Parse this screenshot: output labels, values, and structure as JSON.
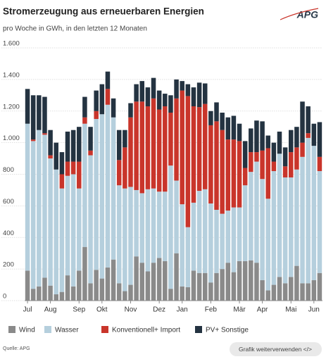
{
  "chart_data": {
    "type": "stacked_bar",
    "title": "Stromerzeugung aus erneuerbaren Energien",
    "subtitle": "pro Woche in GWh, in den letzten 12 Monaten",
    "logo": "APG",
    "source": "Quelle: APG",
    "button": "Grafik weiterverwenden </>",
    "categories": [
      "Jul",
      null,
      null,
      null,
      "Aug",
      null,
      null,
      null,
      null,
      "Sep",
      null,
      null,
      null,
      "Okt",
      null,
      null,
      null,
      null,
      "Nov",
      null,
      null,
      null,
      null,
      "Dez",
      null,
      null,
      null,
      "Jan",
      null,
      null,
      null,
      null,
      "Feb",
      null,
      null,
      null,
      null,
      "Mär",
      null,
      null,
      null,
      "Apr",
      null,
      null,
      null,
      null,
      "Mai",
      null,
      null,
      null,
      "Jun",
      null
    ],
    "series": [
      {
        "name": "Wind",
        "color": "#8a8a8a",
        "values": [
          190,
          75,
          90,
          145,
          95,
          40,
          55,
          160,
          90,
          190,
          340,
          110,
          195,
          140,
          210,
          260,
          110,
          60,
          100,
          280,
          240,
          185,
          240,
          270,
          250,
          75,
          300,
          90,
          85,
          190,
          175,
          175,
          115,
          175,
          200,
          240,
          180,
          250,
          250,
          255,
          240,
          130,
          65,
          100,
          150,
          110,
          150,
          220,
          110,
          110,
          130,
          175
        ]
      },
      {
        "name": "Wasser",
        "color": "#b5cfdd",
        "values": [
          930,
          935,
          990,
          905,
          805,
          790,
          655,
          630,
          710,
          520,
          780,
          810,
          955,
          1040,
          1030,
          900,
          620,
          650,
          620,
          420,
          440,
          520,
          470,
          420,
          440,
          780,
          460,
          520,
          380,
          430,
          520,
          530,
          500,
          400,
          350,
          330,
          410,
          340,
          480,
          560,
          640,
          640,
          580,
          720,
          780,
          670,
          630,
          610,
          800,
          920,
          850,
          645
        ]
      },
      {
        "name": "Konventionell+ Import",
        "color": "#c9352b",
        "values": [
          0,
          10,
          0,
          10,
          20,
          0,
          90,
          90,
          80,
          170,
          40,
          30,
          50,
          0,
          100,
          0,
          160,
          260,
          440,
          560,
          580,
          525,
          570,
          520,
          540,
          335,
          520,
          720,
          830,
          610,
          530,
          540,
          495,
          560,
          530,
          450,
          430,
          420,
          110,
          125,
          60,
          180,
          320,
          60,
          0,
          70,
          160,
          140,
          90,
          30,
          0,
          90
        ]
      },
      {
        "name": "PV+ Sonstige",
        "color": "#243341",
        "values": [
          220,
          280,
          220,
          230,
          160,
          170,
          140,
          190,
          200,
          220,
          130,
          150,
          130,
          190,
          110,
          120,
          190,
          110,
          90,
          110,
          130,
          120,
          130,
          120,
          80,
          110,
          120,
          60,
          75,
          120,
          155,
          130,
          90,
          120,
          110,
          140,
          150,
          110,
          170,
          150,
          200,
          185,
          80,
          120,
          140,
          120,
          140,
          130,
          260,
          170,
          140,
          220
        ]
      }
    ],
    "ylim": [
      0,
      1600
    ],
    "yticks": [
      0,
      200,
      400,
      600,
      800,
      {
        "value": 1000,
        "label": "1.000"
      },
      {
        "value": 1200,
        "label": "1.200"
      },
      {
        "value": 1400,
        "label": "1.400"
      },
      {
        "value": 1600,
        "label": "1.600"
      }
    ],
    "grid": true
  }
}
